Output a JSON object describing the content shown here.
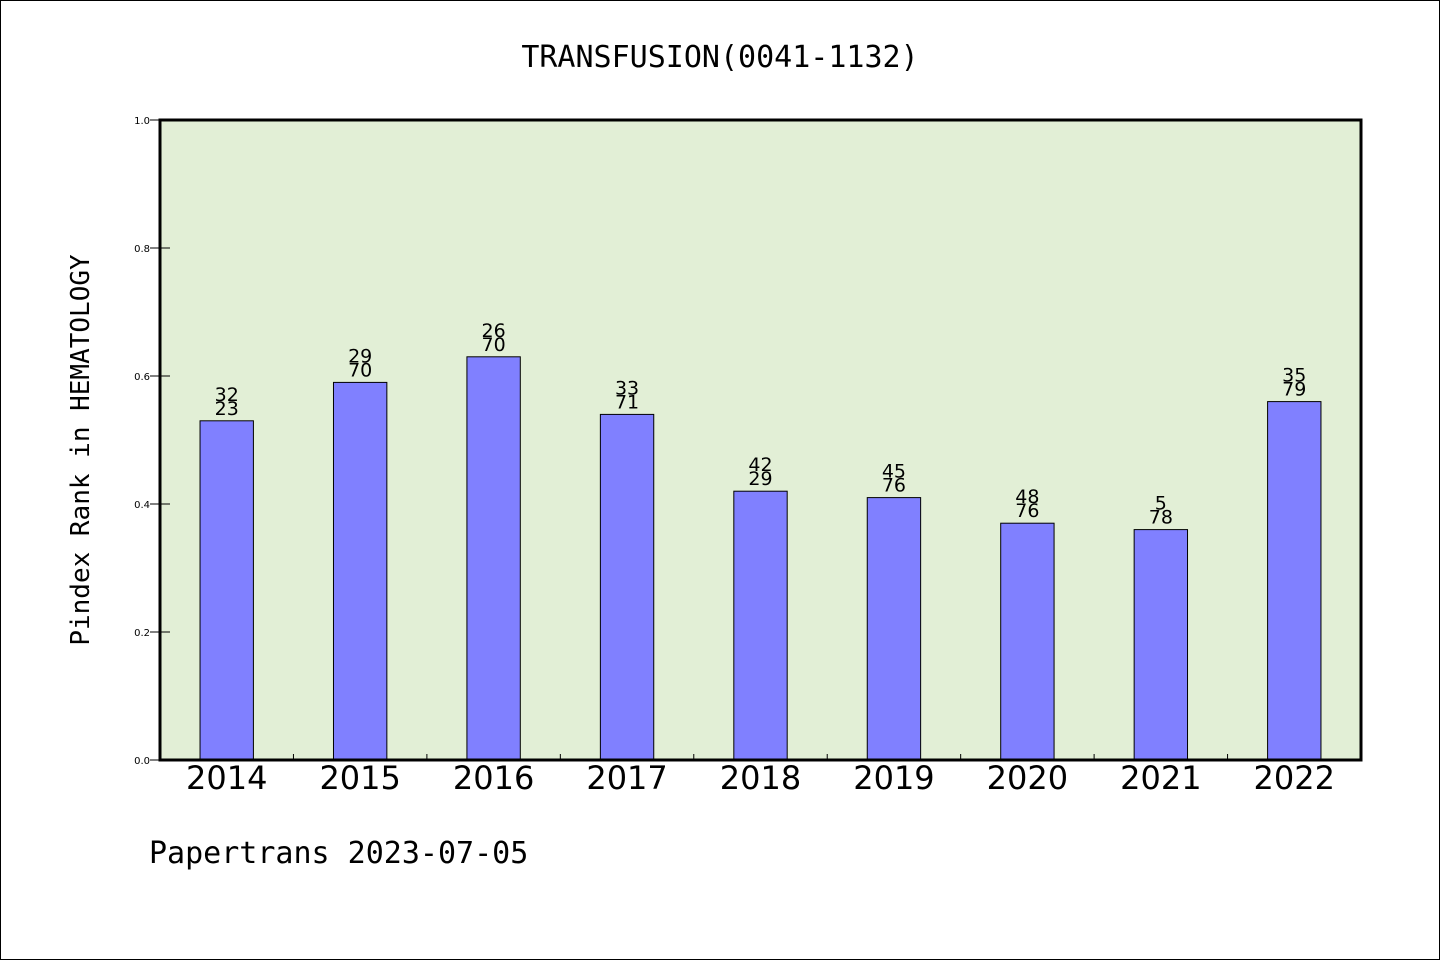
{
  "chart_data": {
    "type": "bar",
    "title": "TRANSFUSION(0041-1132)",
    "ylabel": "Pindex Rank in HEMATOLOGY",
    "xlabel": "",
    "ylim": [
      0.0,
      1.0
    ],
    "yticks": [
      "0.0",
      "0.2",
      "0.4",
      "0.6",
      "0.8",
      "1.0"
    ],
    "ytick_values": [
      0.0,
      0.2,
      0.4,
      0.6,
      0.8,
      1.0
    ],
    "grid": false,
    "categories": [
      "2014",
      "2015",
      "2016",
      "2017",
      "2018",
      "2019",
      "2020",
      "2021",
      "2022"
    ],
    "values": [
      0.53,
      0.59,
      0.63,
      0.54,
      0.42,
      0.41,
      0.37,
      0.36,
      0.56
    ],
    "annotations": [
      {
        "top": "32",
        "bottom": "23"
      },
      {
        "top": "29",
        "bottom": "70"
      },
      {
        "top": "26",
        "bottom": "70"
      },
      {
        "top": "33",
        "bottom": "71"
      },
      {
        "top": "42",
        "bottom": "29"
      },
      {
        "top": "45",
        "bottom": "76"
      },
      {
        "top": "48",
        "bottom": "76"
      },
      {
        "top": "5",
        "bottom": "78"
      },
      {
        "top": "35",
        "bottom": "79"
      }
    ],
    "colors": {
      "plot_background": "#e2efd6",
      "bar_fill": "#8080ff",
      "bar_edge": "#000000"
    }
  },
  "footer": {
    "credit": "Papertrans 2023-07-05"
  }
}
